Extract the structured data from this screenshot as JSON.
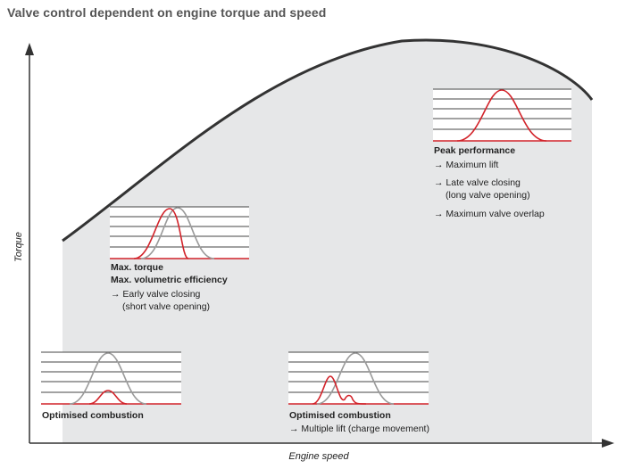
{
  "title": "Valve control dependent on engine torque and speed",
  "axes": {
    "x_label": "Engine speed",
    "y_label": "Torque"
  },
  "colors": {
    "region_fill": "#e6e7e8",
    "curve": "#333333",
    "axis": "#333333",
    "baseline_lift": "#9a9a9a",
    "actual_lift": "#d2232a"
  },
  "panels": {
    "optimised_combustion_1": {
      "heading": "Optimised combustion",
      "notes": []
    },
    "max_torque": {
      "heading": "Max. torque",
      "heading2": "Max. volumetric efficiency",
      "notes": [
        "→ Early valve closing",
        "(short valve opening)"
      ]
    },
    "optimised_combustion_2": {
      "heading": "Optimised combustion",
      "notes": [
        "→ Multiple lift (charge movement)"
      ]
    },
    "peak_performance": {
      "heading": "Peak performance",
      "notes": [
        "→ Maximum lift",
        "→ Late valve closing",
        "(long valve opening)",
        "→ Maximum valve overlap"
      ]
    }
  }
}
